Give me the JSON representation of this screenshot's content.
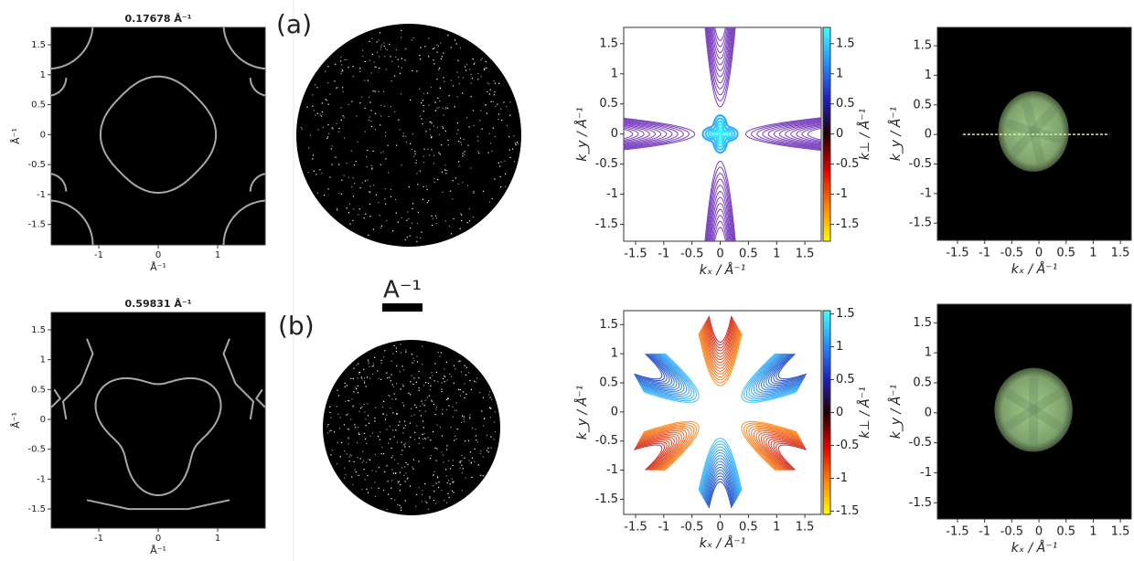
{
  "panel_labels": [
    "(a)",
    "(b)"
  ],
  "scale_bar": "A⁻¹",
  "chart_data": [
    {
      "type": "contour",
      "title": "0.17678 Å⁻¹",
      "xlabel": "Å⁻¹",
      "ylabel": "Å⁻¹",
      "xlim": [
        -1.8,
        1.8
      ],
      "ylim": [
        -1.84,
        1.79
      ],
      "xticks": [
        -1,
        0,
        1
      ],
      "yticks": [
        -1.5,
        -1,
        -0.5,
        0,
        0.5,
        1,
        1.5
      ],
      "background": "#000000",
      "color": "#a8a8a8",
      "symmetry": 4
    },
    {
      "type": "contour",
      "title": "0.59831 Å⁻¹",
      "xlabel": "Å⁻¹",
      "ylabel": "Å⁻¹",
      "xlim": [
        -1.8,
        1.8
      ],
      "ylim": [
        -1.82,
        1.79
      ],
      "xticks": [
        -1,
        0,
        1
      ],
      "yticks": [
        -1.5,
        -1,
        -0.5,
        0,
        0.5,
        1,
        1.5
      ],
      "background": "#000000",
      "color": "#a8a8a8",
      "symmetry": 3
    },
    {
      "type": "contour",
      "xlabel": "kₓ / Å⁻¹",
      "ylabel": "k_y / Å⁻¹",
      "xlim": [
        -1.71,
        1.79
      ],
      "ylim": [
        -1.78,
        1.77
      ],
      "xticks": [
        -1.5,
        -1,
        -0.5,
        0,
        0.5,
        1,
        1.5
      ],
      "yticks": [
        -1.5,
        -1,
        -0.5,
        0,
        0.5,
        1,
        1.5
      ],
      "background": "#ffffff",
      "color": "#7b3fbf",
      "symmetry": 4,
      "colorbar": {
        "label": "k⊥ / Å⁻¹",
        "lim": [
          -1.78,
          1.77
        ],
        "ticks": [
          -1.5,
          -1,
          -0.5,
          0,
          0.5,
          1,
          1.5
        ],
        "colors": [
          "#ffff00",
          "#ff8000",
          "#e00000",
          "#200000",
          "#2020c0",
          "#2090ff",
          "#40ffff"
        ]
      }
    },
    {
      "type": "contour",
      "xlabel": "kₓ / Å⁻¹",
      "ylabel": "k_y / Å⁻¹",
      "xlim": [
        -1.71,
        1.79
      ],
      "ylim": [
        -1.76,
        1.74
      ],
      "xticks": [
        -1.5,
        -1,
        -0.5,
        0,
        0.5,
        1,
        1.5
      ],
      "yticks": [
        -1.5,
        -1,
        -0.5,
        0,
        0.5,
        1,
        1.5
      ],
      "background": "#ffffff",
      "color": "#e06020",
      "symmetry": 6,
      "colorbar": {
        "label": "k⊥ / Å⁻¹",
        "lim": [
          -1.55,
          1.55
        ],
        "ticks": [
          -1.5,
          -1,
          -0.5,
          0,
          0.5,
          1,
          1.5
        ],
        "colors": [
          "#ffff00",
          "#ff8000",
          "#e00000",
          "#200000",
          "#2020c0",
          "#2090ff",
          "#40ffff"
        ]
      }
    },
    {
      "type": "image",
      "xlabel": "kₓ / Å⁻¹",
      "ylabel": "k_y / Å⁻¹",
      "xlim": [
        -1.87,
        1.7
      ],
      "ylim": [
        -1.79,
        1.81
      ],
      "xticks": [
        -1.5,
        -1,
        -0.5,
        0,
        0.5,
        1,
        1.5
      ],
      "yticks": [
        -1.5,
        -1,
        -0.5,
        0,
        0.5,
        1,
        1.5
      ],
      "background": "#000000",
      "color": "#a8d890",
      "cut_line": true
    },
    {
      "type": "image",
      "xlabel": "kₓ / Å⁻¹",
      "ylabel": "k_y / Å⁻¹",
      "xlim": [
        -1.87,
        1.7
      ],
      "ylim": [
        -1.77,
        1.81
      ],
      "xticks": [
        -1.5,
        -1,
        -0.5,
        0,
        0.5,
        1,
        1.5
      ],
      "yticks": [
        -1.5,
        -1,
        -0.5,
        0,
        0.5,
        1,
        1.5
      ],
      "background": "#000000",
      "color": "#a8d890",
      "cut_line": false
    }
  ]
}
